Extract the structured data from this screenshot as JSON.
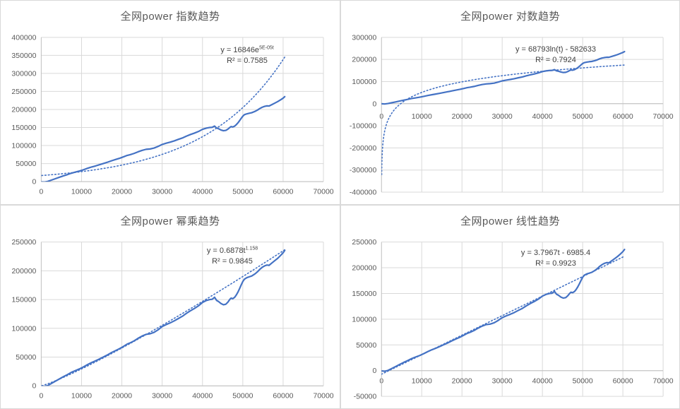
{
  "colors": {
    "series": "#4472C4",
    "trendline": "#4472C4",
    "gridline": "#d9d9d9",
    "axis_line": "#bfbfbf",
    "tick_text": "#595959",
    "title_text": "#595959",
    "equation_text": "#404040",
    "chart_border": "#d9d9d9",
    "background": "#ffffff"
  },
  "chart_data": {
    "type": "line",
    "grid": true,
    "legend": "none",
    "xlabel": "",
    "ylabel": "",
    "x_ticks": [
      0,
      10000,
      20000,
      30000,
      40000,
      50000,
      60000,
      70000
    ],
    "series": {
      "name": "全网power",
      "color": "#4472C4",
      "points": [
        [
          0,
          -500
        ],
        [
          800,
          -1200
        ],
        [
          1600,
          500
        ],
        [
          2500,
          4000
        ],
        [
          3500,
          8000
        ],
        [
          4500,
          12000
        ],
        [
          5500,
          16000
        ],
        [
          6500,
          19500
        ],
        [
          7500,
          23500
        ],
        [
          8500,
          26500
        ],
        [
          9500,
          29500
        ],
        [
          10500,
          33000
        ],
        [
          11500,
          37000
        ],
        [
          12500,
          40500
        ],
        [
          13500,
          43500
        ],
        [
          14500,
          47000
        ],
        [
          15500,
          50500
        ],
        [
          16500,
          54000
        ],
        [
          17500,
          58000
        ],
        [
          18500,
          61500
        ],
        [
          19500,
          65000
        ],
        [
          20500,
          69000
        ],
        [
          21300,
          72500
        ],
        [
          22000,
          74500
        ],
        [
          23000,
          78000
        ],
        [
          24000,
          82500
        ],
        [
          25000,
          86500
        ],
        [
          26000,
          89500
        ],
        [
          27000,
          90500
        ],
        [
          28000,
          93000
        ],
        [
          29000,
          97500
        ],
        [
          30000,
          103000
        ],
        [
          31000,
          106500
        ],
        [
          32000,
          109500
        ],
        [
          33000,
          113000
        ],
        [
          34000,
          117000
        ],
        [
          35000,
          121000
        ],
        [
          36000,
          126000
        ],
        [
          37000,
          130500
        ],
        [
          38000,
          134500
        ],
        [
          39000,
          139000
        ],
        [
          40000,
          145000
        ],
        [
          41000,
          148500
        ],
        [
          41800,
          150000
        ],
        [
          42400,
          150500
        ],
        [
          43000,
          154000
        ],
        [
          43500,
          148500
        ],
        [
          44000,
          146500
        ],
        [
          44600,
          143000
        ],
        [
          45200,
          141000
        ],
        [
          45800,
          142000
        ],
        [
          46300,
          145500
        ],
        [
          46800,
          150500
        ],
        [
          47100,
          152500
        ],
        [
          47500,
          151500
        ],
        [
          48000,
          154000
        ],
        [
          48400,
          158000
        ],
        [
          48800,
          163000
        ],
        [
          49200,
          169000
        ],
        [
          49600,
          175500
        ],
        [
          50000,
          181500
        ],
        [
          50400,
          185500
        ],
        [
          51000,
          188000
        ],
        [
          51600,
          189500
        ],
        [
          52200,
          191000
        ],
        [
          53000,
          194500
        ],
        [
          53600,
          198000
        ],
        [
          54200,
          202500
        ],
        [
          54800,
          206000
        ],
        [
          55400,
          208500
        ],
        [
          56000,
          210000
        ],
        [
          56500,
          209500
        ],
        [
          57200,
          213500
        ],
        [
          58000,
          218000
        ],
        [
          58700,
          222000
        ],
        [
          59400,
          227000
        ],
        [
          60000,
          231500
        ],
        [
          60400,
          235500
        ]
      ]
    },
    "charts": [
      {
        "key": "exponential",
        "title": "全网power 指数趋势",
        "eq_main": "y = 16846e",
        "eq_sup": "5E-05t",
        "r2": "R² = 0.7585",
        "xlim": [
          0,
          70000
        ],
        "ylim": [
          0,
          400000
        ],
        "y_ticks": [
          400000,
          350000,
          300000,
          250000,
          200000,
          150000,
          100000,
          50000,
          0
        ],
        "trend": {
          "type": "exp",
          "a": 16846,
          "b": 5e-05,
          "tmin": 100,
          "tmax": 60400
        }
      },
      {
        "key": "logarithmic",
        "title": "全网power 对数趋势",
        "eq_main": "y = 68793ln(t) - 582633",
        "eq_sup": "",
        "r2": "R² = 0.7924",
        "xlim": [
          0,
          70000
        ],
        "ylim": [
          -400000,
          300000
        ],
        "y_ticks": [
          300000,
          200000,
          100000,
          0,
          -100000,
          -200000,
          -300000,
          -400000
        ],
        "trend": {
          "type": "log",
          "a": 68793,
          "b": -582633,
          "tmin": 45,
          "tmax": 60400
        }
      },
      {
        "key": "power",
        "title": "全网power 幂乘趋势",
        "eq_main": "y = 0.6878t",
        "eq_sup": "1.158",
        "r2": "R² = 0.9845",
        "xlim": [
          0,
          70000
        ],
        "ylim": [
          0,
          250000
        ],
        "y_ticks": [
          250000,
          200000,
          150000,
          100000,
          50000,
          0
        ],
        "trend": {
          "type": "pow",
          "a": 0.6878,
          "b": 1.158,
          "tmin": 150,
          "tmax": 60400
        }
      },
      {
        "key": "linear",
        "title": "全网power 线性趋势",
        "eq_main": "y = 3.7967t - 6985.4",
        "eq_sup": "",
        "r2": "R² = 0.9923",
        "xlim": [
          0,
          70000
        ],
        "ylim": [
          -50000,
          250000
        ],
        "y_ticks": [
          250000,
          200000,
          150000,
          100000,
          50000,
          0,
          -50000
        ],
        "trend": {
          "type": "lin",
          "a": 3.7967,
          "b": -6985.4,
          "tmin": 0,
          "tmax": 60400
        }
      }
    ]
  }
}
